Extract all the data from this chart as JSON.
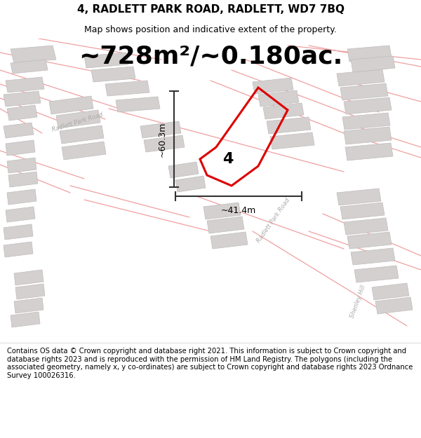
{
  "title": "4, RADLETT PARK ROAD, RADLETT, WD7 7BQ",
  "subtitle": "Map shows position and indicative extent of the property.",
  "area_text": "~728m²/~0.180ac.",
  "plot_number": "4",
  "dim_vertical": "~60.3m",
  "dim_horizontal": "~41.4m",
  "footer": "Contains OS data © Crown copyright and database right 2021. This information is subject to Crown copyright and database rights 2023 and is reproduced with the permission of HM Land Registry. The polygons (including the associated geometry, namely x, y co-ordinates) are subject to Crown copyright and database rights 2023 Ordnance Survey 100026316.",
  "bg_color": "#ffffff",
  "map_bg": "#f7f3f3",
  "red_plot": "#dd0000",
  "light_red": "#f0a0a0",
  "gray_building": "#d4d0d0",
  "road_line": "#e8aaaa",
  "title_fontsize": 11,
  "subtitle_fontsize": 9,
  "area_fontsize": 26,
  "footer_fontsize": 7.2,
  "label_color": "#aaaaaa",
  "dim_line_color": "#333333"
}
